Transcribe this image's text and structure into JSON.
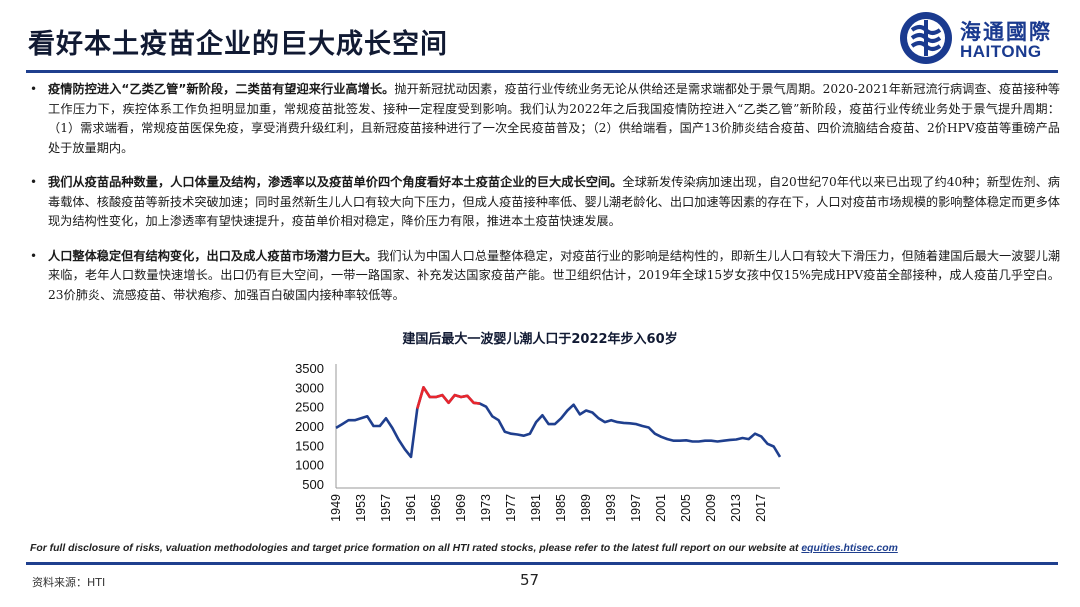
{
  "header": {
    "title": "看好本土疫苗企业的巨大成长空间",
    "logo_cn": "海通國際",
    "logo_en": "HAITONG"
  },
  "bullets": [
    {
      "bold": "疫情防控进入“乙类乙管”新阶段，二类苗有望迎来行业高增长。",
      "text": "抛开新冠扰动因素，疫苗行业传统业务无论从供给还是需求端都处于景气周期。2020-2021年新冠流行病调查、疫苗接种等工作压力下，疾控体系工作负担明显加重，常规疫苗批签发、接种一定程度受到影响。我们认为2022年之后我国疫情防控进入“乙类乙管”新阶段，疫苗行业传统业务处于景气提升周期：（1）需求端看，常规疫苗医保免疫，享受消费升级红利，且新冠疫苗接种进行了一次全民疫苗普及；（2）供给端看，国产13价肺炎结合疫苗、四价流脑结合疫苗、2价HPV疫苗等重磅产品处于放量期内。"
    },
    {
      "bold": "我们从疫苗品种数量，人口体量及结构，渗透率以及疫苗单价四个角度看好本土疫苗企业的巨大成长空间。",
      "text": "全球新发传染病加速出现，自20世纪70年代以来已出现了约40种；新型佐剂、病毒载体、核酸疫苗等新技术突破加速；同时虽然新生儿人口有较大向下压力，但成人疫苗接种率低、婴儿潮老龄化、出口加速等因素的存在下，人口对疫苗市场规模的影响整体稳定而更多体现为结构性变化，加上渗透率有望快速提升，疫苗单价相对稳定，降价压力有限，推进本土疫苗快速发展。"
    },
    {
      "bold": "人口整体稳定但有结构变化，出口及成人疫苗市场潜力巨大。",
      "text": "我们认为中国人口总量整体稳定，对疫苗行业的影响是结构性的，即新生儿人口有较大下滑压力，但随着建国后最大一波婴儿潮来临，老年人口数量快速增长。出口仍有巨大空间，一带一路国家、补充发达国家疫苗产能。世卫组织估计，2019年全球15岁女孩中仅15%完成HPV疫苗全部接种，成人疫苗几乎空白。23价肺炎、流感疫苗、带状疱疹、加强百白破国内接种率较低等。"
    }
  ],
  "chart_data": {
    "type": "line",
    "title": "建国后最大一波婴儿潮人口于2022年步入60岁",
    "xlabel": "",
    "ylabel": "",
    "ylim": [
      500,
      3500
    ],
    "yticks": [
      500,
      1000,
      1500,
      2000,
      2500,
      3000,
      3500
    ],
    "xticks": [
      1949,
      1953,
      1957,
      1961,
      1965,
      1969,
      1973,
      1977,
      1981,
      1985,
      1989,
      1993,
      1997,
      2001,
      2005,
      2009,
      2013,
      2017
    ],
    "grid": false,
    "legend": "none",
    "colors": {
      "main": "#1f3f8e",
      "highlight": "#e8262d"
    },
    "highlight_range": [
      1962,
      1972
    ],
    "x": [
      1949,
      1950,
      1951,
      1952,
      1953,
      1954,
      1955,
      1956,
      1957,
      1958,
      1959,
      1960,
      1961,
      1962,
      1963,
      1964,
      1965,
      1966,
      1967,
      1968,
      1969,
      1970,
      1971,
      1972,
      1973,
      1974,
      1975,
      1976,
      1977,
      1978,
      1979,
      1980,
      1981,
      1982,
      1983,
      1984,
      1985,
      1986,
      1987,
      1988,
      1989,
      1990,
      1991,
      1992,
      1993,
      1994,
      1995,
      1996,
      1997,
      1998,
      1999,
      2000,
      2001,
      2002,
      2003,
      2004,
      2005,
      2006,
      2007,
      2008,
      2009,
      2010,
      2011,
      2012,
      2013,
      2014,
      2015,
      2016,
      2017,
      2018,
      2019,
      2020
    ],
    "values": [
      1950,
      2050,
      2150,
      2150,
      2200,
      2250,
      2000,
      2000,
      2200,
      1950,
      1650,
      1400,
      1200,
      2450,
      3000,
      2750,
      2750,
      2800,
      2600,
      2800,
      2750,
      2780,
      2600,
      2580,
      2500,
      2250,
      2150,
      1850,
      1800,
      1780,
      1750,
      1800,
      2100,
      2280,
      2050,
      2050,
      2200,
      2400,
      2550,
      2300,
      2400,
      2350,
      2200,
      2100,
      2150,
      2100,
      2080,
      2070,
      2050,
      2000,
      1960,
      1800,
      1720,
      1660,
      1620,
      1620,
      1630,
      1600,
      1600,
      1620,
      1620,
      1600,
      1620,
      1640,
      1650,
      1690,
      1660,
      1800,
      1730,
      1540,
      1470,
      1200
    ]
  },
  "footer": {
    "disclaimer_text": "For full disclosure of risks, valuation methodologies and target price formation on all HTI rated stocks, please refer to the latest full report on our website at ",
    "disclaimer_link": "equities.htisec.com",
    "source": "资料来源：HTI",
    "page_number": "57"
  }
}
